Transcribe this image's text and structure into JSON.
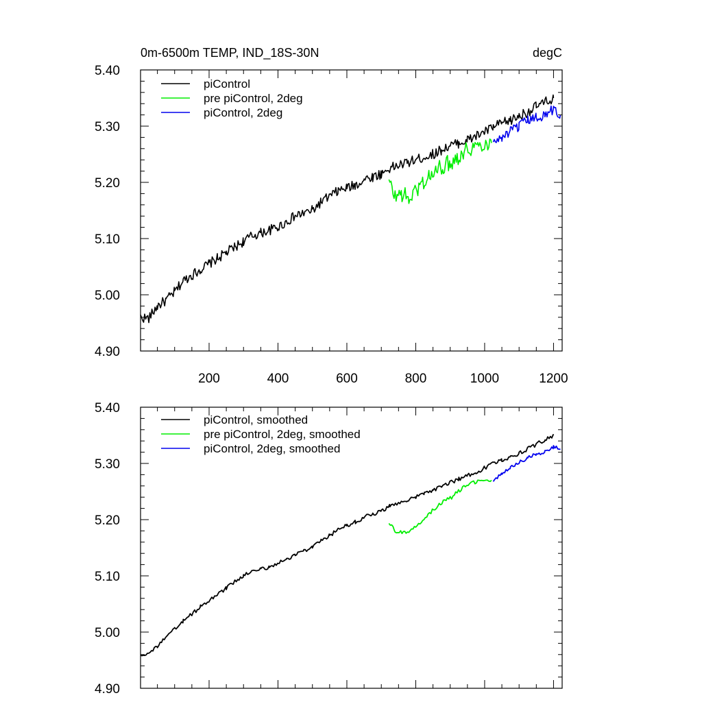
{
  "header": {
    "title": "0m-6500m TEMP, IND_18S-30N",
    "units": "degC"
  },
  "colors": {
    "piControl": "#000000",
    "pre_piControl_2deg": "#00ee00",
    "piControl_2deg": "#0000ee",
    "axes": "#000000"
  },
  "chart_data": [
    {
      "type": "line",
      "panel": "top",
      "title": "0m-6500m TEMP, IND_18S-30N",
      "units": "degC",
      "xlabel": "",
      "ylabel": "",
      "xlim": [
        1,
        1225
      ],
      "ylim": [
        4.9,
        5.4
      ],
      "yticks": [
        "4.90",
        "5.00",
        "5.10",
        "5.20",
        "5.30",
        "5.40"
      ],
      "xticks": [
        "200",
        "400",
        "600",
        "800",
        "1000",
        "1200"
      ],
      "legend_position": "top-left",
      "series": [
        {
          "name": "piControl",
          "color": "#000000",
          "x": [
            1,
            25,
            50,
            75,
            100,
            125,
            150,
            175,
            200,
            225,
            250,
            275,
            300,
            325,
            350,
            375,
            400,
            425,
            450,
            475,
            500,
            525,
            550,
            575,
            600,
            625,
            650,
            675,
            700,
            725,
            750,
            775,
            800,
            825,
            850,
            875,
            900,
            925,
            950,
            975,
            1000,
            1025,
            1050,
            1075,
            1100,
            1125,
            1150,
            1175,
            1200
          ],
          "y": [
            4.96,
            4.958,
            4.98,
            4.99,
            5.005,
            5.025,
            5.035,
            5.045,
            5.055,
            5.065,
            5.075,
            5.085,
            5.095,
            5.105,
            5.11,
            5.115,
            5.12,
            5.13,
            5.14,
            5.145,
            5.15,
            5.165,
            5.175,
            5.185,
            5.19,
            5.195,
            5.205,
            5.21,
            5.215,
            5.225,
            5.23,
            5.235,
            5.24,
            5.245,
            5.25,
            5.258,
            5.265,
            5.27,
            5.275,
            5.282,
            5.29,
            5.298,
            5.305,
            5.31,
            5.318,
            5.325,
            5.335,
            5.342,
            5.35
          ]
        },
        {
          "name": "pre piControl, 2deg",
          "color": "#00ee00",
          "x": [
            722,
            740,
            760,
            780,
            800,
            820,
            840,
            860,
            880,
            900,
            920,
            940,
            960,
            980,
            1000,
            1020
          ],
          "y": [
            5.2,
            5.175,
            5.18,
            5.17,
            5.185,
            5.2,
            5.21,
            5.22,
            5.23,
            5.235,
            5.245,
            5.255,
            5.262,
            5.265,
            5.27,
            5.27
          ]
        },
        {
          "name": "piControl, 2deg",
          "color": "#0000ee",
          "x": [
            1025,
            1050,
            1075,
            1100,
            1125,
            1150,
            1175,
            1200,
            1220
          ],
          "y": [
            5.27,
            5.28,
            5.29,
            5.3,
            5.31,
            5.315,
            5.32,
            5.33,
            5.32
          ]
        }
      ]
    },
    {
      "type": "line",
      "panel": "bottom",
      "xlabel": "",
      "ylabel": "",
      "xlim": [
        1,
        1225
      ],
      "ylim": [
        4.9,
        5.4
      ],
      "yticks": [
        "4.90",
        "5.00",
        "5.10",
        "5.20",
        "5.30",
        "5.40"
      ],
      "legend_position": "top-left",
      "series": [
        {
          "name": "piControl, smoothed",
          "color": "#000000",
          "x": [
            1,
            25,
            50,
            75,
            100,
            125,
            150,
            175,
            200,
            225,
            250,
            275,
            300,
            325,
            350,
            375,
            400,
            425,
            450,
            475,
            500,
            525,
            550,
            575,
            600,
            625,
            650,
            675,
            700,
            725,
            750,
            775,
            800,
            825,
            850,
            875,
            900,
            925,
            950,
            975,
            1000,
            1025,
            1050,
            1075,
            1100,
            1125,
            1150,
            1175,
            1200
          ],
          "y": [
            4.96,
            4.962,
            4.975,
            4.99,
            5.005,
            5.02,
            5.032,
            5.045,
            5.055,
            5.068,
            5.078,
            5.09,
            5.1,
            5.108,
            5.112,
            5.116,
            5.122,
            5.13,
            5.138,
            5.145,
            5.15,
            5.162,
            5.172,
            5.182,
            5.19,
            5.196,
            5.204,
            5.21,
            5.215,
            5.224,
            5.23,
            5.235,
            5.24,
            5.246,
            5.252,
            5.26,
            5.266,
            5.272,
            5.278,
            5.284,
            5.292,
            5.3,
            5.306,
            5.312,
            5.318,
            5.326,
            5.334,
            5.342,
            5.35
          ]
        },
        {
          "name": "pre piControl, 2deg, smoothed",
          "color": "#00ee00",
          "x": [
            722,
            740,
            760,
            780,
            800,
            820,
            840,
            860,
            880,
            900,
            920,
            940,
            960,
            980,
            1000,
            1020
          ],
          "y": [
            5.195,
            5.18,
            5.178,
            5.175,
            5.188,
            5.2,
            5.212,
            5.222,
            5.232,
            5.238,
            5.248,
            5.258,
            5.264,
            5.268,
            5.27,
            5.27
          ]
        },
        {
          "name": "piControl, 2deg, smoothed",
          "color": "#0000ee",
          "x": [
            1025,
            1050,
            1075,
            1100,
            1125,
            1150,
            1175,
            1200,
            1220
          ],
          "y": [
            5.27,
            5.282,
            5.292,
            5.302,
            5.31,
            5.316,
            5.322,
            5.33,
            5.325
          ]
        }
      ]
    }
  ]
}
